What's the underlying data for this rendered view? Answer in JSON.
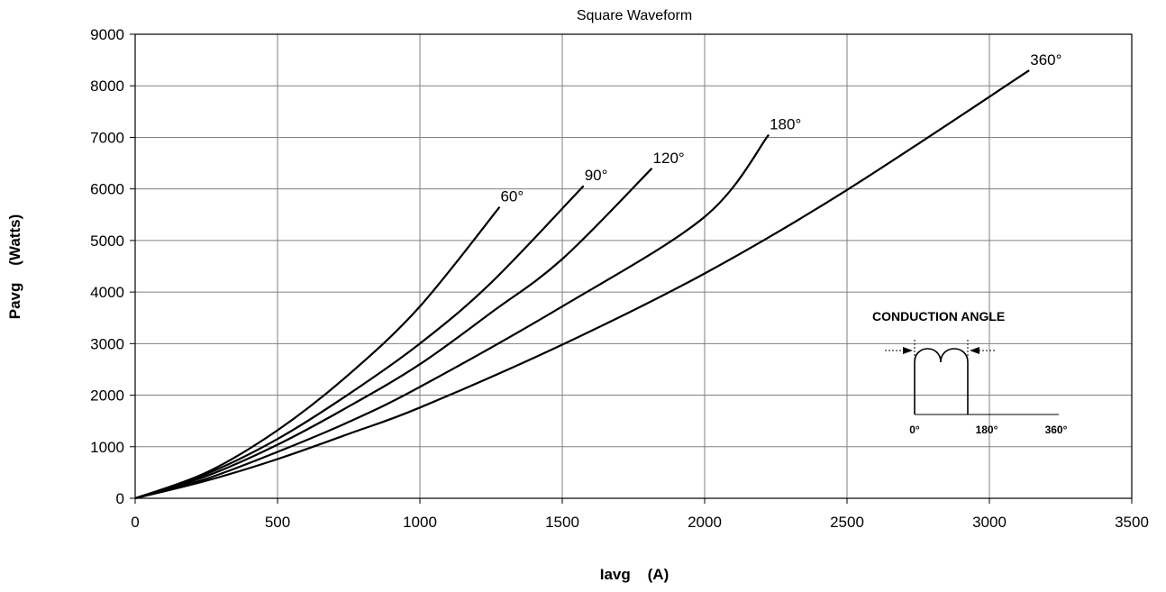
{
  "chart_data": {
    "type": "line",
    "title": "Square Waveform",
    "xlabel": "Iavg    (A)",
    "ylabel": "Pavg    (Watts)",
    "xlim": [
      0,
      3500
    ],
    "ylim": [
      0,
      9000
    ],
    "xticks": [
      0,
      500,
      1000,
      1500,
      2000,
      2500,
      3000,
      3500
    ],
    "yticks": [
      0,
      1000,
      2000,
      3000,
      4000,
      5000,
      6000,
      7000,
      8000,
      9000
    ],
    "grid": true,
    "legend": "none",
    "series": [
      {
        "name": "60°",
        "points": [
          [
            0,
            0
          ],
          [
            250,
            500
          ],
          [
            500,
            1320
          ],
          [
            750,
            2400
          ],
          [
            1000,
            3720
          ],
          [
            1280,
            5650
          ]
        ]
      },
      {
        "name": "90°",
        "points": [
          [
            0,
            0
          ],
          [
            250,
            470
          ],
          [
            500,
            1150
          ],
          [
            750,
            2020
          ],
          [
            1000,
            3000
          ],
          [
            1250,
            4180
          ],
          [
            1575,
            6060
          ]
        ]
      },
      {
        "name": "120°",
        "points": [
          [
            0,
            0
          ],
          [
            250,
            430
          ],
          [
            500,
            1040
          ],
          [
            750,
            1780
          ],
          [
            1000,
            2600
          ],
          [
            1250,
            3600
          ],
          [
            1500,
            4640
          ],
          [
            1815,
            6400
          ]
        ]
      },
      {
        "name": "180°",
        "points": [
          [
            0,
            0
          ],
          [
            250,
            380
          ],
          [
            500,
            900
          ],
          [
            750,
            1480
          ],
          [
            1000,
            2160
          ],
          [
            1500,
            3720
          ],
          [
            2000,
            5460
          ],
          [
            2225,
            7050
          ]
        ]
      },
      {
        "name": "360°",
        "points": [
          [
            0,
            0
          ],
          [
            250,
            340
          ],
          [
            500,
            760
          ],
          [
            750,
            1250
          ],
          [
            1000,
            1760
          ],
          [
            1500,
            2980
          ],
          [
            2000,
            4360
          ],
          [
            2500,
            5980
          ],
          [
            3140,
            8300
          ]
        ]
      }
    ],
    "annotation": {
      "title": "CONDUCTION ANGLE",
      "ticks": [
        "0°",
        "180°",
        "360°"
      ]
    }
  }
}
